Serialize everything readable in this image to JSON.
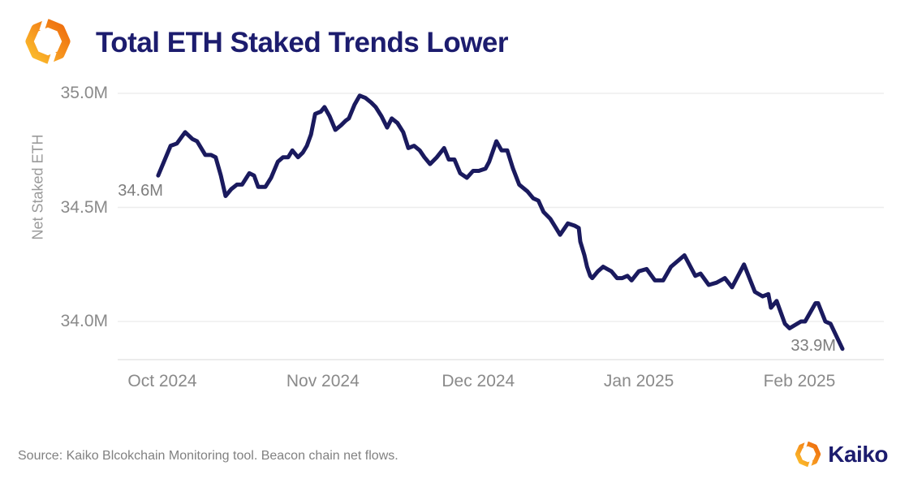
{
  "header": {
    "title": "Total ETH Staked Trends Lower"
  },
  "footer": {
    "source_text": "Source: Kaiko Blcokchain Monitoring tool. Beacon chain net flows.",
    "brand": "Kaiko"
  },
  "colors": {
    "line": "#1a1a5e",
    "navy_text": "#1c1c6e",
    "gray_text": "#8a8a8a",
    "grid": "#ededed",
    "axis": "#e6e6e6",
    "logo_orange_light": "#fbb826",
    "logo_orange_dark": "#ee6c0d"
  },
  "chart_data": {
    "type": "line",
    "title": "Total ETH Staked Trends Lower",
    "xlabel": "",
    "ylabel": "Net Staked ETH",
    "x_unit": "days since Oct 1 2024",
    "y_unit": "million ETH",
    "grid": "horizontal",
    "legend": "none",
    "ylim": [
      33.83,
      35.07
    ],
    "y_ticks": [
      {
        "value": 35.0,
        "label": "35.0M"
      },
      {
        "value": 34.5,
        "label": "34.5M"
      },
      {
        "value": 34.0,
        "label": "34.0M"
      }
    ],
    "x_ticks": [
      {
        "day": 0,
        "label": "Oct 2024"
      },
      {
        "day": 31,
        "label": "Nov 2024"
      },
      {
        "day": 61,
        "label": "Dec 2024"
      },
      {
        "day": 92,
        "label": "Jan 2025"
      },
      {
        "day": 123,
        "label": "Feb 2025"
      }
    ],
    "annotations": [
      {
        "day": -0.8,
        "value": 34.64,
        "label": "34.6M",
        "align": "start"
      },
      {
        "day": 131.3,
        "value": 33.88,
        "label": "33.9M",
        "align": "end"
      }
    ],
    "points": [
      [
        -0.8,
        34.64
      ],
      [
        1.6,
        34.77
      ],
      [
        2.8,
        34.78
      ],
      [
        4.4,
        34.83
      ],
      [
        5.8,
        34.8
      ],
      [
        6.7,
        34.79
      ],
      [
        8.3,
        34.73
      ],
      [
        9.4,
        34.73
      ],
      [
        10.3,
        34.72
      ],
      [
        11.3,
        34.64
      ],
      [
        12.2,
        34.55
      ],
      [
        13.3,
        34.58
      ],
      [
        14.4,
        34.6
      ],
      [
        15.4,
        34.6
      ],
      [
        16.8,
        34.65
      ],
      [
        17.7,
        34.64
      ],
      [
        18.5,
        34.59
      ],
      [
        19.9,
        34.59
      ],
      [
        21.0,
        34.63
      ],
      [
        22.3,
        34.7
      ],
      [
        23.3,
        34.72
      ],
      [
        24.3,
        34.72
      ],
      [
        25.1,
        34.75
      ],
      [
        26.2,
        34.72
      ],
      [
        27.1,
        34.74
      ],
      [
        27.9,
        34.77
      ],
      [
        28.7,
        34.82
      ],
      [
        29.5,
        34.91
      ],
      [
        30.6,
        34.92
      ],
      [
        31.3,
        34.94
      ],
      [
        32.3,
        34.9
      ],
      [
        33.4,
        34.84
      ],
      [
        34.5,
        34.86
      ],
      [
        35.4,
        34.88
      ],
      [
        36.0,
        34.89
      ],
      [
        37.1,
        34.95
      ],
      [
        38.1,
        34.99
      ],
      [
        39.2,
        34.98
      ],
      [
        40.3,
        34.96
      ],
      [
        41.2,
        34.94
      ],
      [
        42.3,
        34.9
      ],
      [
        43.4,
        34.85
      ],
      [
        44.3,
        34.89
      ],
      [
        45.4,
        34.87
      ],
      [
        46.5,
        34.83
      ],
      [
        47.5,
        34.76
      ],
      [
        48.6,
        34.77
      ],
      [
        49.7,
        34.75
      ],
      [
        50.6,
        34.72
      ],
      [
        51.7,
        34.69
      ],
      [
        53.0,
        34.72
      ],
      [
        54.4,
        34.76
      ],
      [
        55.3,
        34.71
      ],
      [
        56.4,
        34.71
      ],
      [
        57.5,
        34.65
      ],
      [
        58.8,
        34.63
      ],
      [
        60.0,
        34.66
      ],
      [
        61.1,
        34.66
      ],
      [
        62.4,
        34.67
      ],
      [
        63.1,
        34.7
      ],
      [
        64.5,
        34.79
      ],
      [
        65.5,
        34.75
      ],
      [
        66.6,
        34.75
      ],
      [
        67.7,
        34.67
      ],
      [
        68.9,
        34.6
      ],
      [
        70.5,
        34.57
      ],
      [
        71.6,
        34.54
      ],
      [
        72.6,
        34.53
      ],
      [
        73.6,
        34.48
      ],
      [
        74.9,
        34.45
      ],
      [
        76.0,
        34.41
      ],
      [
        76.8,
        34.38
      ],
      [
        78.3,
        34.43
      ],
      [
        79.6,
        34.42
      ],
      [
        80.4,
        34.41
      ],
      [
        80.7,
        34.35
      ],
      [
        81.5,
        34.29
      ],
      [
        82.0,
        34.24
      ],
      [
        82.6,
        34.2
      ],
      [
        83.0,
        34.19
      ],
      [
        84.1,
        34.22
      ],
      [
        85.1,
        34.24
      ],
      [
        85.9,
        34.23
      ],
      [
        86.7,
        34.22
      ],
      [
        87.8,
        34.19
      ],
      [
        88.8,
        34.19
      ],
      [
        89.8,
        34.2
      ],
      [
        90.6,
        34.18
      ],
      [
        92.0,
        34.22
      ],
      [
        93.5,
        34.23
      ],
      [
        95.1,
        34.18
      ],
      [
        96.7,
        34.18
      ],
      [
        98.2,
        34.24
      ],
      [
        100.8,
        34.29
      ],
      [
        102.9,
        34.2
      ],
      [
        103.9,
        34.21
      ],
      [
        105.5,
        34.16
      ],
      [
        107.0,
        34.17
      ],
      [
        108.6,
        34.19
      ],
      [
        110.0,
        34.15
      ],
      [
        112.3,
        34.25
      ],
      [
        114.4,
        34.13
      ],
      [
        115.9,
        34.11
      ],
      [
        117.0,
        34.12
      ],
      [
        117.5,
        34.06
      ],
      [
        118.6,
        34.09
      ],
      [
        120.2,
        33.99
      ],
      [
        121.1,
        33.97
      ],
      [
        123.3,
        34.0
      ],
      [
        124.1,
        34.0
      ],
      [
        126.1,
        34.08
      ],
      [
        126.6,
        34.08
      ],
      [
        128.0,
        34.0
      ],
      [
        129.0,
        33.99
      ],
      [
        131.3,
        33.88
      ]
    ]
  }
}
